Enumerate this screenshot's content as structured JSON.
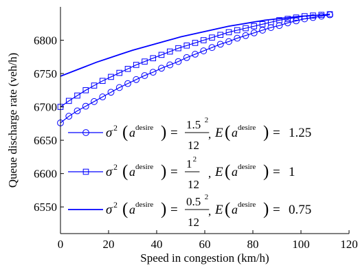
{
  "chart_data": {
    "type": "line",
    "xlabel": "Speed in congestion (km/h)",
    "ylabel": "Queue discharge rate (veh/h)",
    "xlim": [
      0,
      120
    ],
    "ylim": [
      6510,
      6850
    ],
    "xticks": [
      "0",
      "20",
      "40",
      "60",
      "80",
      "100",
      "120"
    ],
    "yticks": [
      "6550",
      "6600",
      "6650",
      "6700",
      "6750",
      "6800"
    ],
    "grid": false,
    "legend_position": "bottom-right",
    "colors": {
      "series": "#0000ff",
      "axis": "#000000"
    },
    "series": [
      {
        "name": "σ²(a^desire) = 1.5²/12, E(a^desire) = 1.25",
        "legend": {
          "sigma_num": "1.5",
          "sigma_exp": "2",
          "sigma_den": "12",
          "mean": "1.25"
        },
        "marker": "circle",
        "x": [
          0,
          3.5,
          7,
          10.5,
          14,
          17.5,
          21,
          24.5,
          28,
          31.5,
          35,
          38.5,
          42,
          45.5,
          49,
          52.5,
          56,
          59.5,
          63,
          66.5,
          70,
          73.5,
          77,
          80.5,
          84,
          87.5,
          91,
          94.5,
          98,
          101.5,
          105,
          108.5,
          112
        ],
        "y": [
          6676,
          6686,
          6694,
          6701,
          6708,
          6715,
          6722,
          6729,
          6735,
          6741,
          6747,
          6752,
          6758,
          6763,
          6768,
          6774,
          6779,
          6784,
          6789,
          6794,
          6798,
          6803,
          6807,
          6811,
          6815,
          6819,
          6822,
          6826,
          6829,
          6832,
          6834,
          6836,
          6838
        ]
      },
      {
        "name": "σ²(a^desire) = 1²/12, E(a^desire) = 1",
        "legend": {
          "sigma_num": "1",
          "sigma_exp": "2",
          "sigma_den": "12",
          "mean": "1"
        },
        "marker": "square",
        "x": [
          0,
          3.5,
          7,
          10.5,
          14,
          17.5,
          21,
          24.5,
          28,
          31.5,
          35,
          38.5,
          42,
          45.5,
          49,
          52.5,
          56,
          59.5,
          63,
          66.5,
          70,
          73.5,
          77,
          80.5,
          84,
          87.5,
          91,
          94.5,
          98,
          101.5,
          105,
          108.5,
          112
        ],
        "y": [
          6700,
          6709,
          6717,
          6725,
          6732,
          6739,
          6745,
          6751,
          6757,
          6763,
          6768,
          6773,
          6778,
          6783,
          6788,
          6792,
          6796,
          6800,
          6804,
          6808,
          6812,
          6815,
          6818,
          6821,
          6824,
          6827,
          6830,
          6832,
          6834,
          6836,
          6837,
          6838,
          6839
        ]
      },
      {
        "name": "σ²(a^desire) = 0.5²/12, E(a^desire) = 0.75",
        "legend": {
          "sigma_num": "0.5",
          "sigma_exp": "2",
          "sigma_den": "12",
          "mean": "0.75"
        },
        "marker": "none",
        "x": [
          0,
          5,
          10,
          15,
          20,
          25,
          30,
          35,
          40,
          45,
          50,
          55,
          60,
          65,
          70,
          75,
          80,
          85,
          90,
          95,
          100,
          105,
          110,
          112
        ],
        "y": [
          6746,
          6753,
          6760,
          6767,
          6773,
          6779,
          6785,
          6790,
          6795,
          6800,
          6805,
          6809,
          6813,
          6817,
          6821,
          6824,
          6827,
          6830,
          6832,
          6834,
          6836,
          6837,
          6838,
          6839
        ]
      }
    ]
  }
}
